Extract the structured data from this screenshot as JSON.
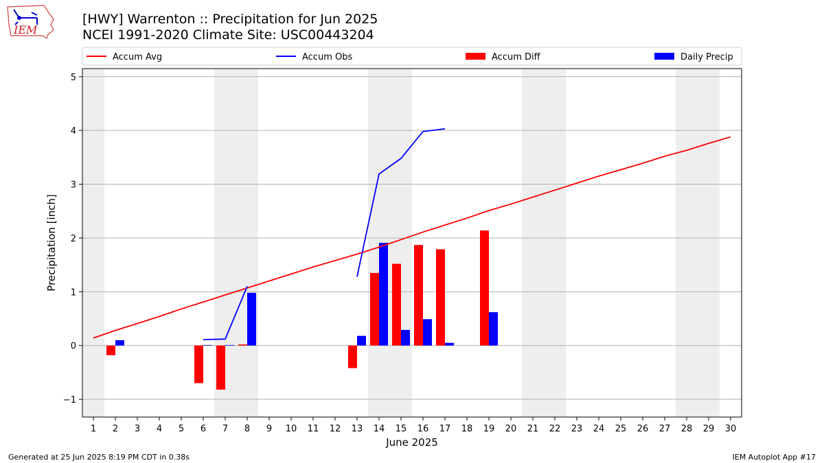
{
  "header": {
    "title_line1": "[HWY] Warrenton :: Precipitation for Jun 2025",
    "title_line2": "NCEI 1991-2020 Climate Site: USC00443204",
    "logo_text": "IEM"
  },
  "footer": {
    "left": "Generated at 25 Jun 2025 8:19 PM CDT in 0.38s",
    "right": "IEM Autoplot App #17"
  },
  "colors": {
    "avg": "#ff0000",
    "obs": "#0000ff",
    "diff": "#ff0000",
    "daily": "#0000ff",
    "weekend": "#eeeeee",
    "grid": "#b0b0b0"
  },
  "chart_data": {
    "type": "bar",
    "xlabel": "June 2025",
    "ylabel": "Precipitation [inch]",
    "xlim": [
      0.5,
      30.5
    ],
    "ylim": [
      -1.33,
      5.15
    ],
    "yticks": [
      -1,
      0,
      1,
      2,
      3,
      4,
      5
    ],
    "ytick_labels": [
      "−1",
      "0",
      "1",
      "2",
      "3",
      "4",
      "5"
    ],
    "days": [
      1,
      2,
      3,
      4,
      5,
      6,
      7,
      8,
      9,
      10,
      11,
      12,
      13,
      14,
      15,
      16,
      17,
      18,
      19,
      20,
      21,
      22,
      23,
      24,
      25,
      26,
      27,
      28,
      29,
      30
    ],
    "weekend_days": [
      1,
      7,
      8,
      14,
      15,
      21,
      22,
      28,
      29
    ],
    "grid": true,
    "legend_placement": "top",
    "legend": [
      {
        "label": "Accum Avg",
        "kind": "line",
        "color": "#ff0000"
      },
      {
        "label": "Accum Obs",
        "kind": "line",
        "color": "#0000ff"
      },
      {
        "label": "Accum Diff",
        "kind": "bar",
        "color": "#ff0000"
      },
      {
        "label": "Daily Precip",
        "kind": "bar",
        "color": "#0000ff"
      }
    ],
    "series": [
      {
        "name": "Accum Avg",
        "kind": "line",
        "days": [
          1,
          2,
          3,
          4,
          5,
          6,
          7,
          8,
          9,
          10,
          11,
          12,
          13,
          14,
          15,
          16,
          17,
          18,
          19,
          20,
          21,
          22,
          23,
          24,
          25,
          26,
          27,
          28,
          29,
          30
        ],
        "values": [
          0.14,
          0.28,
          0.41,
          0.54,
          0.68,
          0.81,
          0.94,
          1.07,
          1.2,
          1.33,
          1.46,
          1.58,
          1.7,
          1.83,
          1.97,
          2.11,
          2.24,
          2.37,
          2.51,
          2.63,
          2.76,
          2.89,
          3.02,
          3.15,
          3.27,
          3.39,
          3.52,
          3.63,
          3.76,
          3.88
        ]
      },
      {
        "name": "Accum Obs",
        "kind": "line",
        "segments": [
          {
            "days": [
              6,
              7,
              8
            ],
            "values": [
              0.11,
              0.12,
              1.1
            ]
          },
          {
            "days": [
              13,
              14,
              15,
              16,
              17
            ],
            "values": [
              1.28,
              3.19,
              3.48,
              3.98,
              4.03
            ]
          }
        ]
      },
      {
        "name": "Accum Diff",
        "kind": "bar",
        "days": [
          2,
          6,
          7,
          8,
          13,
          14,
          15,
          16,
          17,
          19
        ],
        "values": [
          -0.18,
          -0.7,
          -0.82,
          0.02,
          -0.42,
          1.35,
          1.52,
          1.87,
          1.79,
          2.14
        ]
      },
      {
        "name": "Daily Precip",
        "kind": "bar",
        "days": [
          2,
          6,
          7,
          8,
          13,
          14,
          15,
          16,
          17,
          19
        ],
        "values": [
          0.1,
          0.01,
          0.01,
          0.98,
          0.18,
          1.91,
          0.29,
          0.49,
          0.05,
          0.62
        ]
      }
    ]
  }
}
